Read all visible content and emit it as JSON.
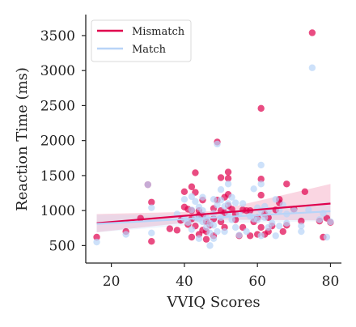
{
  "chart_data": {
    "type": "scatter",
    "xlabel": "VVIQ Scores",
    "ylabel": "Reaction Time (ms)",
    "xlim": [
      13,
      83
    ],
    "ylim": [
      250,
      3800
    ],
    "xticks": [
      20,
      40,
      60,
      80
    ],
    "yticks": [
      500,
      1000,
      1500,
      2000,
      2500,
      3000,
      3500
    ],
    "grid": false,
    "legend": "top-left",
    "series": [
      {
        "name": "Mismatch",
        "color": "#e0004d",
        "fit": {
          "x": [
            16,
            80
          ],
          "y": [
            820,
            1100
          ]
        },
        "ci_upper": {
          "x": [
            16,
            48,
            80
          ],
          "y": [
            950,
            990,
            1380
          ]
        },
        "ci_lower": {
          "x": [
            16,
            48,
            80
          ],
          "y": [
            690,
            870,
            860
          ]
        },
        "points": [
          [
            16,
            620
          ],
          [
            24,
            700
          ],
          [
            28,
            890
          ],
          [
            30,
            1370
          ],
          [
            31,
            1120
          ],
          [
            31,
            560
          ],
          [
            36,
            740
          ],
          [
            38,
            720
          ],
          [
            39,
            860
          ],
          [
            40,
            1270
          ],
          [
            40,
            1050
          ],
          [
            41,
            1020
          ],
          [
            41,
            800
          ],
          [
            42,
            1340
          ],
          [
            42,
            880
          ],
          [
            42,
            1000
          ],
          [
            42,
            620
          ],
          [
            43,
            1540
          ],
          [
            43,
            1260
          ],
          [
            43,
            780
          ],
          [
            44,
            1000
          ],
          [
            44,
            660
          ],
          [
            44,
            930
          ],
          [
            45,
            1150
          ],
          [
            45,
            930
          ],
          [
            45,
            720
          ],
          [
            46,
            840
          ],
          [
            46,
            700
          ],
          [
            46,
            590
          ],
          [
            47,
            790
          ],
          [
            48,
            880
          ],
          [
            48,
            640
          ],
          [
            48,
            1030
          ],
          [
            49,
            1980
          ],
          [
            49,
            1150
          ],
          [
            50,
            1470
          ],
          [
            50,
            1000
          ],
          [
            50,
            840
          ],
          [
            51,
            1190
          ],
          [
            51,
            970
          ],
          [
            51,
            760
          ],
          [
            52,
            1550
          ],
          [
            52,
            1460
          ],
          [
            52,
            1070
          ],
          [
            52,
            1230
          ],
          [
            53,
            1020
          ],
          [
            54,
            950
          ],
          [
            54,
            870
          ],
          [
            55,
            640
          ],
          [
            56,
            1010
          ],
          [
            56,
            760
          ],
          [
            57,
            1000
          ],
          [
            58,
            640
          ],
          [
            58,
            1000
          ],
          [
            59,
            840
          ],
          [
            60,
            660
          ],
          [
            60,
            900
          ],
          [
            61,
            2460
          ],
          [
            61,
            1450
          ],
          [
            61,
            1220
          ],
          [
            61,
            760
          ],
          [
            62,
            660
          ],
          [
            62,
            950
          ],
          [
            63,
            700
          ],
          [
            63,
            900
          ],
          [
            64,
            780
          ],
          [
            65,
            1010
          ],
          [
            66,
            1160
          ],
          [
            66,
            1110
          ],
          [
            67,
            700
          ],
          [
            68,
            1380
          ],
          [
            68,
            790
          ],
          [
            70,
            1020
          ],
          [
            72,
            850
          ],
          [
            73,
            1270
          ],
          [
            75,
            3540
          ],
          [
            77,
            850
          ],
          [
            78,
            620
          ],
          [
            79,
            890
          ],
          [
            80,
            830
          ]
        ]
      },
      {
        "name": "Match",
        "color": "#b8d4f8",
        "fit": {
          "x": [
            16,
            80
          ],
          "y": [
            810,
            990
          ]
        },
        "ci_upper": {
          "x": [
            16,
            48,
            80
          ],
          "y": [
            940,
            940,
            1130
          ]
        },
        "ci_lower": {
          "x": [
            16,
            48,
            80
          ],
          "y": [
            690,
            820,
            850
          ]
        },
        "points": [
          [
            16,
            550
          ],
          [
            24,
            660
          ],
          [
            30,
            1370
          ],
          [
            31,
            1040
          ],
          [
            31,
            680
          ],
          [
            38,
            950
          ],
          [
            40,
            1160
          ],
          [
            40,
            880
          ],
          [
            41,
            830
          ],
          [
            42,
            1200
          ],
          [
            42,
            1010
          ],
          [
            42,
            730
          ],
          [
            43,
            900
          ],
          [
            43,
            1130
          ],
          [
            44,
            1050
          ],
          [
            44,
            880
          ],
          [
            44,
            600
          ],
          [
            45,
            1190
          ],
          [
            45,
            1000
          ],
          [
            45,
            840
          ],
          [
            46,
            900
          ],
          [
            46,
            760
          ],
          [
            47,
            820
          ],
          [
            47,
            680
          ],
          [
            47,
            500
          ],
          [
            48,
            1160
          ],
          [
            48,
            960
          ],
          [
            48,
            790
          ],
          [
            48,
            600
          ],
          [
            49,
            1950
          ],
          [
            49,
            1080
          ],
          [
            49,
            700
          ],
          [
            50,
            1300
          ],
          [
            50,
            1150
          ],
          [
            50,
            900
          ],
          [
            51,
            1060
          ],
          [
            51,
            700
          ],
          [
            52,
            1380
          ],
          [
            52,
            1100
          ],
          [
            52,
            960
          ],
          [
            53,
            1190
          ],
          [
            53,
            870
          ],
          [
            54,
            1110
          ],
          [
            54,
            760
          ],
          [
            55,
            960
          ],
          [
            55,
            650
          ],
          [
            56,
            1100
          ],
          [
            57,
            700
          ],
          [
            58,
            920
          ],
          [
            59,
            1310
          ],
          [
            59,
            880
          ],
          [
            60,
            1040
          ],
          [
            60,
            870
          ],
          [
            61,
            1650
          ],
          [
            61,
            1380
          ],
          [
            61,
            1000
          ],
          [
            61,
            640
          ],
          [
            62,
            1060
          ],
          [
            62,
            900
          ],
          [
            63,
            760
          ],
          [
            63,
            1000
          ],
          [
            64,
            820
          ],
          [
            65,
            1160
          ],
          [
            65,
            640
          ],
          [
            66,
            1000
          ],
          [
            66,
            780
          ],
          [
            67,
            1080
          ],
          [
            68,
            950
          ],
          [
            68,
            820
          ],
          [
            70,
            1000
          ],
          [
            72,
            700
          ],
          [
            72,
            780
          ],
          [
            74,
            1010
          ],
          [
            75,
            3040
          ],
          [
            77,
            870
          ],
          [
            78,
            960
          ],
          [
            79,
            620
          ],
          [
            80,
            840
          ]
        ]
      }
    ]
  }
}
